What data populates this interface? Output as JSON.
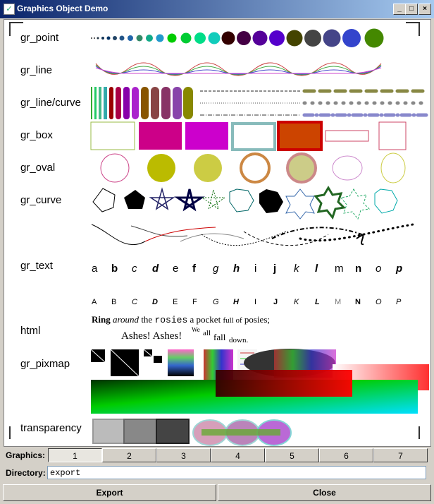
{
  "window": {
    "title": "Graphics Object Demo"
  },
  "rows": {
    "gr_point": "gr_point",
    "gr_line": "gr_line",
    "gr_line_curve": "gr_line/curve",
    "gr_box": "gr_box",
    "gr_oval": "gr_oval",
    "gr_curve": "gr_curve",
    "gr_text": "gr_text",
    "html": "html",
    "gr_pixmap": "gr_pixmap",
    "transparency": "transparency"
  },
  "text_samples": {
    "letters": [
      "a",
      "b",
      "c",
      "d",
      "e",
      "f",
      "g",
      "h",
      "i",
      "j",
      "k",
      "l",
      "m",
      "n",
      "o",
      "p"
    ],
    "capitals": [
      "A",
      "B",
      "C",
      "D",
      "E",
      "F",
      "G",
      "H",
      "I",
      "J",
      "K",
      "L",
      "M",
      "N",
      "O",
      "P"
    ]
  },
  "html_sample": {
    "ring": "Ring",
    "around": "around",
    "the": "the",
    "rosies": "rosies",
    "a_pocket": "a pocket",
    "full_of": "full of",
    "posies": "posies;",
    "ashes": "Ashes! Ashes!",
    "we": "We",
    "all": "all",
    "fall": "fall",
    "down": "down."
  },
  "graphics": {
    "label": "Graphics:",
    "tabs": [
      "1",
      "2",
      "3",
      "4",
      "5",
      "6",
      "7"
    ],
    "selected": "1"
  },
  "directory": {
    "label": "Directory:",
    "value": "export"
  },
  "buttons": {
    "export": "Export",
    "close": "Close"
  },
  "colors": {
    "titlebar_start": "#0a246a",
    "titlebar_end": "#a6caf0",
    "panel": "#d4d0c8"
  }
}
